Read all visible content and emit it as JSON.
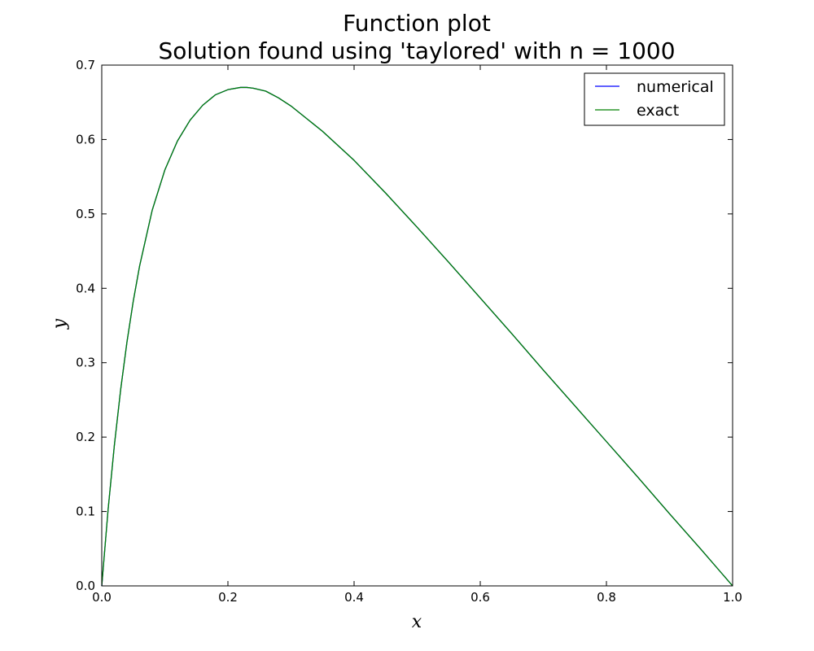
{
  "chart_data": {
    "type": "line",
    "title": "Function plot",
    "subtitle": "Solution found using 'taylored' with n = 1000",
    "xlabel": "x",
    "ylabel": "y",
    "xlim": [
      0.0,
      1.0
    ],
    "ylim": [
      0.0,
      0.7
    ],
    "xticks": [
      "0.0",
      "0.2",
      "0.4",
      "0.6",
      "0.8",
      "1.0"
    ],
    "yticks": [
      "0.0",
      "0.1",
      "0.2",
      "0.3",
      "0.4",
      "0.5",
      "0.6",
      "0.7"
    ],
    "grid": false,
    "legend_position": "top-right",
    "x": [
      0.0,
      0.01,
      0.02,
      0.03,
      0.04,
      0.05,
      0.06,
      0.08,
      0.1,
      0.12,
      0.14,
      0.16,
      0.18,
      0.2,
      0.22,
      0.23,
      0.24,
      0.26,
      0.28,
      0.3,
      0.35,
      0.4,
      0.45,
      0.5,
      0.55,
      0.6,
      0.65,
      0.7,
      0.75,
      0.8,
      0.85,
      0.9,
      0.95,
      1.0
    ],
    "series": [
      {
        "name": "numerical",
        "color": "#0000ff",
        "values": [
          0.0,
          0.102,
          0.189,
          0.264,
          0.328,
          0.383,
          0.43,
          0.505,
          0.559,
          0.598,
          0.626,
          0.646,
          0.66,
          0.667,
          0.67,
          0.67,
          0.669,
          0.665,
          0.656,
          0.645,
          0.611,
          0.572,
          0.528,
          0.482,
          0.435,
          0.387,
          0.339,
          0.29,
          0.242,
          0.194,
          0.146,
          0.097,
          0.049,
          0.0
        ]
      },
      {
        "name": "exact",
        "color": "#008000",
        "values": [
          0.0,
          0.102,
          0.189,
          0.264,
          0.328,
          0.383,
          0.43,
          0.505,
          0.559,
          0.598,
          0.626,
          0.646,
          0.66,
          0.667,
          0.67,
          0.67,
          0.669,
          0.665,
          0.656,
          0.645,
          0.611,
          0.572,
          0.528,
          0.482,
          0.435,
          0.387,
          0.339,
          0.29,
          0.242,
          0.194,
          0.146,
          0.097,
          0.049,
          0.0
        ]
      }
    ]
  }
}
